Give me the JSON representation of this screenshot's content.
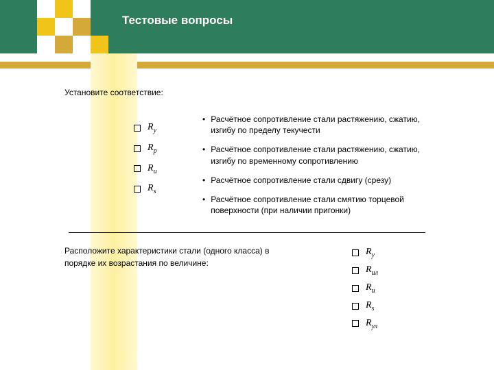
{
  "colors": {
    "header_bg": "#2e7d5c",
    "gold_bar": "#d4a93a",
    "sq_white": "#ffffff",
    "sq_yellow": "#f0c419",
    "sq_dark_yellow": "#d4a93a",
    "text": "#000000",
    "title_text": "#ffffff"
  },
  "title": "Тестовые вопросы",
  "instruction1": "Установите соответствие:",
  "left_symbols": [
    {
      "base": "R",
      "sub": "y"
    },
    {
      "base": "R",
      "sub": "p"
    },
    {
      "base": "R",
      "sub": "и"
    },
    {
      "base": "R",
      "sub": "s"
    }
  ],
  "definitions": [
    "Расчётное сопротивление стали растяжению, сжатию, изгибу по пределу текучести",
    "Расчётное сопротивление стали растяжению, сжатию, изгибу по временному сопротивлению",
    "Расчётное сопротивление стали сдвигу (срезу)",
    "Расчётное сопротивление стали смятию торцевой поверхности (при наличии пригонки)"
  ],
  "instruction2": "Расположите характеристики стали (одного класса) в порядке их возрастания по величине:",
  "right_symbols": [
    {
      "base": "R",
      "sub": "y"
    },
    {
      "base": "R",
      "sub": "ил"
    },
    {
      "base": "R",
      "sub": "и"
    },
    {
      "base": "R",
      "sub": "s"
    },
    {
      "base": "R",
      "sub": "ул"
    }
  ],
  "fonts": {
    "title_size": 17,
    "body_size": 12,
    "symbol_size": 14
  }
}
